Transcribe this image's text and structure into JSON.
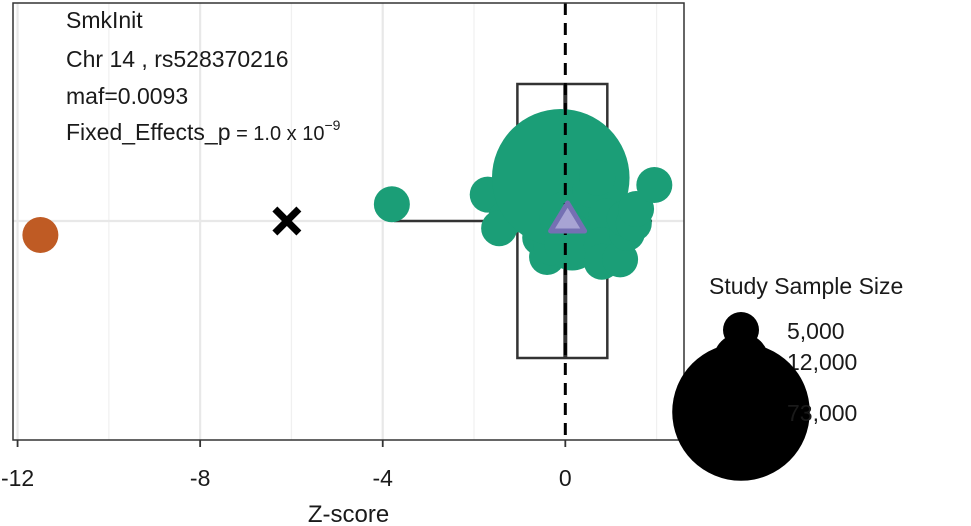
{
  "chart_data": {
    "type": "scatter",
    "title": "",
    "xlabel": "Z-score",
    "ylabel": "",
    "xlim": [
      -12.1,
      2.6
    ],
    "x_ticks": [
      -12,
      -8,
      -4,
      0
    ],
    "x_tick_labels": [
      "-12",
      "-8",
      "-4",
      "0"
    ],
    "grid": true,
    "annotations": {
      "line1": "SmkInit",
      "line2": "Chr 14 , rs528370216",
      "line3": "maf=0.0093",
      "line4_prefix": "Fixed_Effects_p",
      "line4_mid": " = 1.0 x 10",
      "line4_sup": "−9"
    },
    "reference_line_x": 0,
    "boxplot": {
      "q1": -1.05,
      "median": 0.0,
      "q3": 0.92,
      "whisker_low": -3.75,
      "whisker_high": 1.9
    },
    "outlier_point": {
      "x": -11.5,
      "size": 5000,
      "color": "#bf5b24"
    },
    "cross_marker": {
      "x": -6.1,
      "label": ""
    },
    "triangle_marker": {
      "x": 0.05,
      "color": "#7570b3"
    },
    "studies": {
      "color": "#1b9e77",
      "points": [
        {
          "x": -3.8,
          "y": 0.35,
          "size": 5000
        },
        {
          "x": -1.7,
          "y": 0.55,
          "size": 5000
        },
        {
          "x": -1.2,
          "y": 0.75,
          "size": 5000
        },
        {
          "x": -1.3,
          "y": 0.05,
          "size": 5000
        },
        {
          "x": -1.45,
          "y": -0.15,
          "size": 5000
        },
        {
          "x": -0.55,
          "y": -0.35,
          "size": 5000
        },
        {
          "x": -0.4,
          "y": -0.75,
          "size": 5000
        },
        {
          "x": -0.3,
          "y": -0.55,
          "size": 5000
        },
        {
          "x": -0.6,
          "y": 0.45,
          "size": 5000
        },
        {
          "x": -0.1,
          "y": 0.9,
          "size": 73000
        },
        {
          "x": 0.05,
          "y": 0.05,
          "size": 12000
        },
        {
          "x": 0.15,
          "y": -0.45,
          "size": 12000
        },
        {
          "x": 0.55,
          "y": 0.65,
          "size": 5000
        },
        {
          "x": 0.7,
          "y": 0.9,
          "size": 5000
        },
        {
          "x": 0.9,
          "y": 0.1,
          "size": 5000
        },
        {
          "x": 0.8,
          "y": -0.5,
          "size": 5000
        },
        {
          "x": 0.8,
          "y": -0.85,
          "size": 5000
        },
        {
          "x": 1.2,
          "y": -0.8,
          "size": 5000
        },
        {
          "x": 1.35,
          "y": -0.25,
          "size": 5000
        },
        {
          "x": 1.3,
          "y": 0.05,
          "size": 5000
        },
        {
          "x": 1.5,
          "y": -0.05,
          "size": 5000
        },
        {
          "x": 1.55,
          "y": 0.25,
          "size": 5000
        },
        {
          "x": 1.95,
          "y": 0.75,
          "size": 5000
        }
      ]
    },
    "legend": {
      "title": "Study Sample Size",
      "position": "right",
      "entries": [
        {
          "label": "5,000",
          "size": 5000
        },
        {
          "label": "12,000",
          "size": 12000
        },
        {
          "label": "73,000",
          "size": 73000
        }
      ]
    }
  }
}
